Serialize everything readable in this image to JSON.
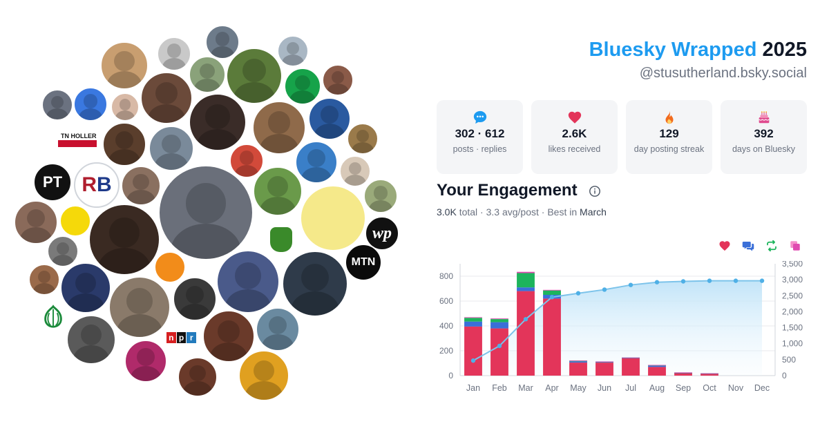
{
  "header": {
    "title_accent": "Bluesky Wrapped",
    "title_year": "2025",
    "handle": "@stusutherland.bsky.social"
  },
  "stats": [
    {
      "icon": "speech-bubble-icon",
      "value": "302 · 612",
      "label": "posts · replies"
    },
    {
      "icon": "heart-icon",
      "value": "2.6K",
      "label": "likes received"
    },
    {
      "icon": "flame-icon",
      "value": "129",
      "label": "day posting streak"
    },
    {
      "icon": "cake-icon",
      "value": "392",
      "label": "days on Bluesky"
    }
  ],
  "engagement": {
    "title": "Your Engagement",
    "total": "3.0K",
    "total_word": " total · ",
    "avg": "3.3 avg/post",
    "best_prefix": " · Best in ",
    "best_month": "March"
  },
  "legend_icons": [
    "heart-icon",
    "reply-icon",
    "repost-icon",
    "quote-icon"
  ],
  "colors": {
    "accent": "#1d9bf0",
    "likes": "#e3355a",
    "replies": "#3a6fd8",
    "reposts": "#1db45c",
    "quotes": "#e04bb0",
    "cumulative_line": "#7cc3ea"
  },
  "logos": {
    "pt": "PT",
    "rb_r": "R",
    "rb_b": "B",
    "tn_holler": "TN HOLLER",
    "wp": "wp",
    "mtn": "MTN",
    "npr_n": "n",
    "npr_p": "p",
    "npr_r": "r"
  },
  "chart_data": {
    "type": "bar",
    "categories": [
      "Jan",
      "Feb",
      "Mar",
      "Apr",
      "May",
      "Jun",
      "Jul",
      "Aug",
      "Sep",
      "Oct",
      "Nov",
      "Dec"
    ],
    "series": [
      {
        "key": "likes",
        "values": [
          395,
          380,
          680,
          620,
          105,
          105,
          140,
          70,
          20,
          15,
          0,
          0
        ]
      },
      {
        "key": "replies",
        "values": [
          40,
          50,
          30,
          30,
          10,
          5,
          3,
          10,
          3,
          2,
          0,
          0
        ]
      },
      {
        "key": "reposts",
        "values": [
          30,
          25,
          115,
          35,
          5,
          3,
          2,
          5,
          2,
          1,
          0,
          0
        ]
      },
      {
        "key": "quotes",
        "values": [
          5,
          5,
          10,
          5,
          2,
          1,
          1,
          1,
          1,
          1,
          0,
          0
        ]
      }
    ],
    "cumulative": [
      470,
      930,
      1765,
      2455,
      2577,
      2691,
      2837,
      2923,
      2949,
      2968,
      2968,
      2968
    ],
    "ylim_left": [
      0,
      900
    ],
    "yticks_left": [
      "0",
      "200",
      "400",
      "600",
      "800"
    ],
    "ylim_right": [
      0,
      3500
    ],
    "yticks_right": [
      "0",
      "500",
      "1,000",
      "1,500",
      "2,000",
      "2,500",
      "3,000",
      "3,500"
    ],
    "grid": true
  }
}
